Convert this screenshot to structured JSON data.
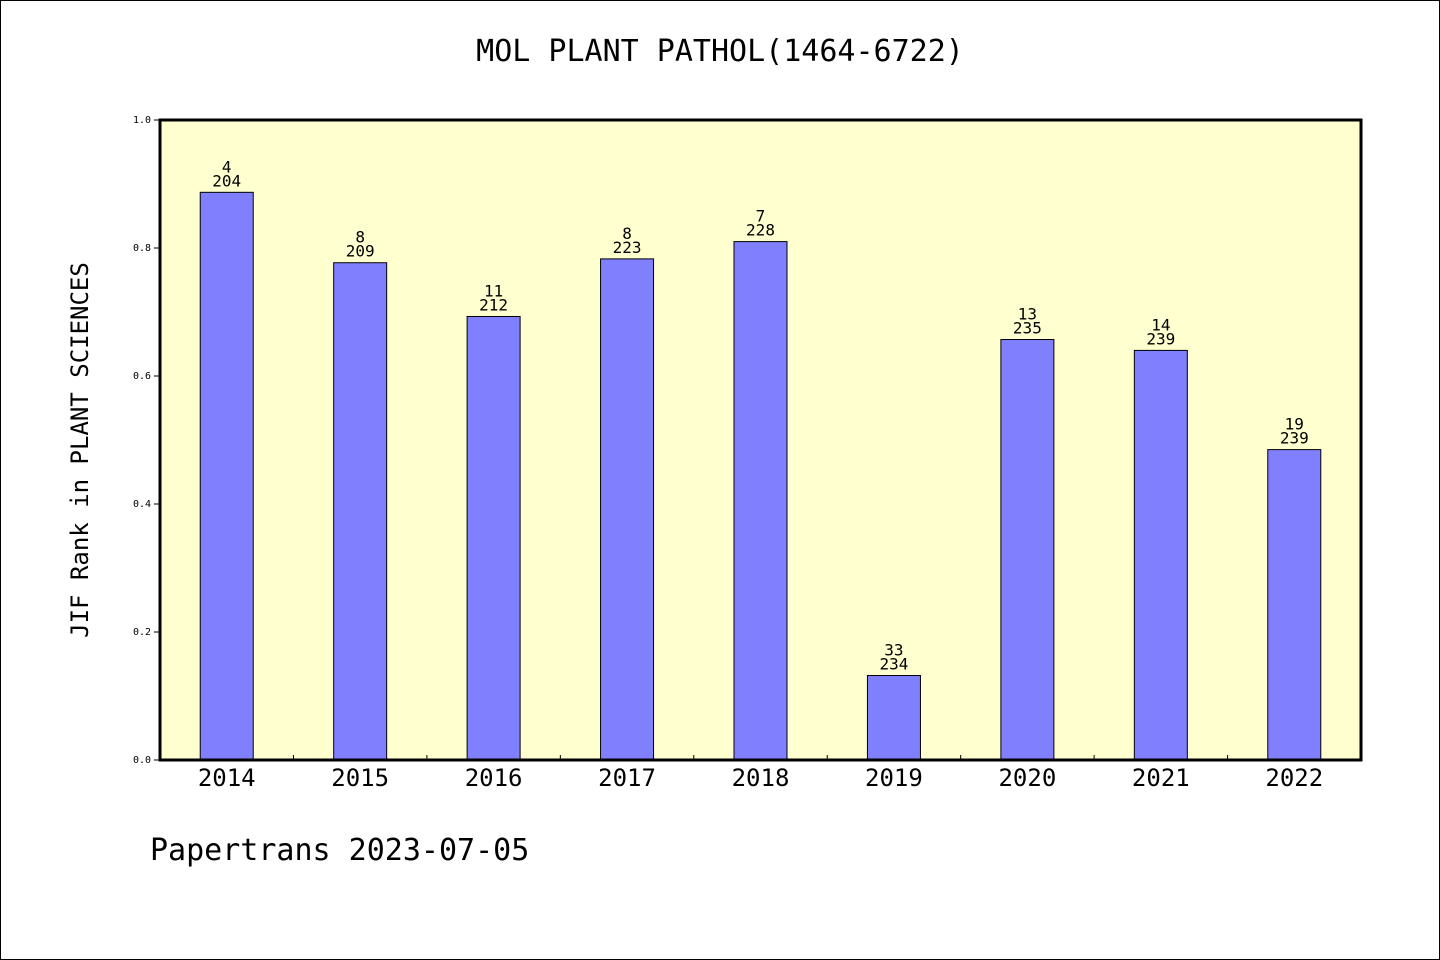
{
  "chart_data": {
    "type": "bar",
    "title": "MOL PLANT PATHOL(1464-6722)",
    "xlabel": "",
    "ylabel": "JIF Rank in PLANT SCIENCES",
    "ylim": [
      0,
      1.0
    ],
    "yticks": [
      "0.0",
      "0.2",
      "0.4",
      "0.6",
      "0.8",
      "1.0"
    ],
    "grid": false,
    "categories": [
      "2014",
      "2015",
      "2016",
      "2017",
      "2018",
      "2019",
      "2020",
      "2021",
      "2022"
    ],
    "values": [
      0.887,
      0.777,
      0.693,
      0.783,
      0.81,
      0.132,
      0.657,
      0.64,
      0.485
    ],
    "rank": [
      "4",
      "8",
      "11",
      "8",
      "7",
      "33",
      "13",
      "14",
      "19"
    ],
    "total": [
      "204",
      "209",
      "212",
      "223",
      "228",
      "234",
      "235",
      "239",
      "239"
    ],
    "colors": {
      "plot_background": "#ffffd0",
      "bar": "#8080ff"
    }
  },
  "footer": "Papertrans 2023-07-05"
}
